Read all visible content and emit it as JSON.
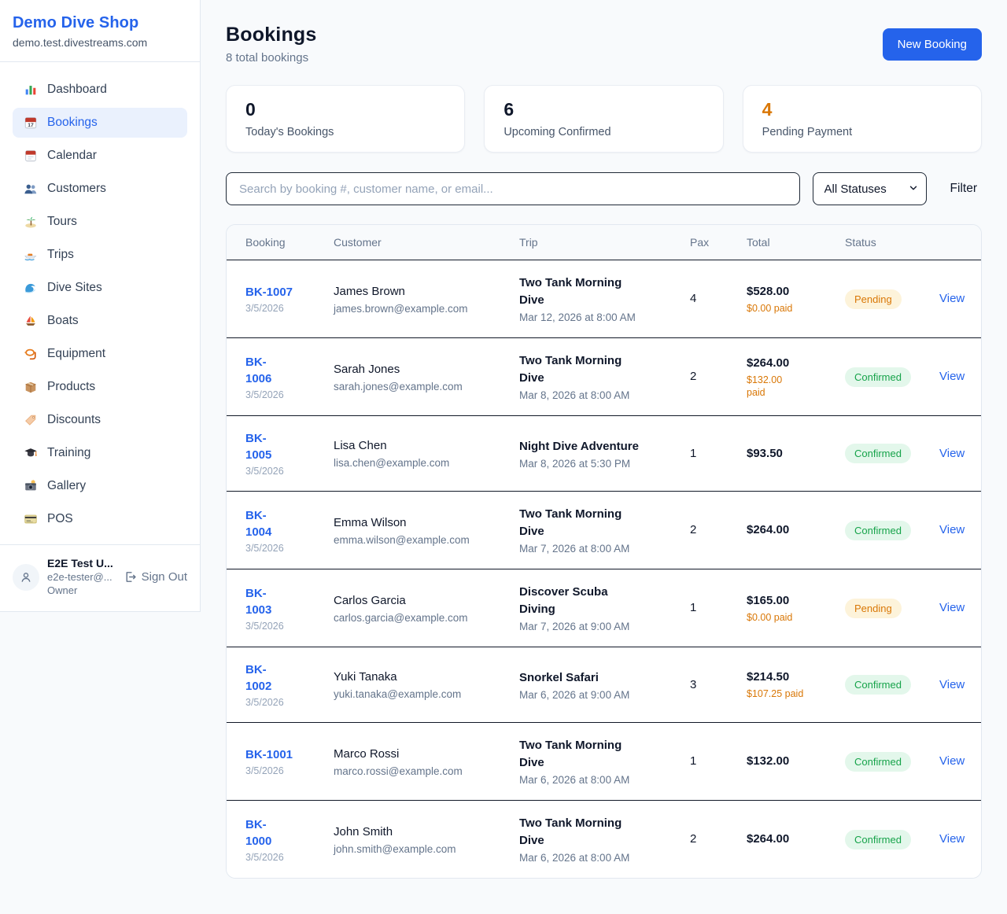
{
  "sidebar": {
    "brand": "Demo Dive Shop",
    "domain": "demo.test.divestreams.com",
    "items": [
      {
        "label": "Dashboard",
        "icon": "bar-chart-icon",
        "active": false
      },
      {
        "label": "Bookings",
        "icon": "calendar-icon",
        "active": true
      },
      {
        "label": "Calendar",
        "icon": "tear-calendar-icon",
        "active": false
      },
      {
        "label": "Customers",
        "icon": "people-icon",
        "active": false
      },
      {
        "label": "Tours",
        "icon": "island-icon",
        "active": false
      },
      {
        "label": "Trips",
        "icon": "speedboat-icon",
        "active": false
      },
      {
        "label": "Dive Sites",
        "icon": "wave-icon",
        "active": false
      },
      {
        "label": "Boats",
        "icon": "sailboat-icon",
        "active": false
      },
      {
        "label": "Equipment",
        "icon": "dive-mask-icon",
        "active": false
      },
      {
        "label": "Products",
        "icon": "package-icon",
        "active": false
      },
      {
        "label": "Discounts",
        "icon": "tag-icon",
        "active": false
      },
      {
        "label": "Training",
        "icon": "graduation-cap-icon",
        "active": false
      },
      {
        "label": "Gallery",
        "icon": "camera-icon",
        "active": false
      },
      {
        "label": "POS",
        "icon": "credit-card-icon",
        "active": false
      }
    ],
    "user": {
      "name": "E2E Test U...",
      "email": "e2e-tester@...",
      "role": "Owner",
      "sign_out_label": "Sign Out"
    }
  },
  "header": {
    "title": "Bookings",
    "subtitle": "8 total bookings",
    "new_booking_label": "New Booking"
  },
  "stats": [
    {
      "value": "0",
      "label": "Today's Bookings",
      "color": "#0f172a"
    },
    {
      "value": "6",
      "label": "Upcoming Confirmed",
      "color": "#0f172a"
    },
    {
      "value": "4",
      "label": "Pending Payment",
      "color": "#d97706"
    }
  ],
  "controls": {
    "search_placeholder": "Search by booking #, customer name, or email...",
    "status_filter_value": "All Statuses",
    "filter_label": "Filter"
  },
  "table": {
    "columns": [
      "Booking",
      "Customer",
      "Trip",
      "Pax",
      "Total",
      "Status"
    ],
    "view_label": "View",
    "rows": [
      {
        "booking_lines": [
          "BK-1007"
        ],
        "date": "3/5/2026",
        "customer": "James Brown",
        "email": "james.brown@example.com",
        "trip_lines": [
          "Two Tank Morning",
          "Dive"
        ],
        "trip_date": "Mar 12, 2026 at 8:00 AM",
        "pax": "4",
        "total": "$528.00",
        "paid_lines": [
          "$0.00 paid"
        ],
        "status": "Pending"
      },
      {
        "booking_lines": [
          "BK-",
          "1006"
        ],
        "date": "3/5/2026",
        "customer": "Sarah Jones",
        "email": "sarah.jones@example.com",
        "trip_lines": [
          "Two Tank Morning",
          "Dive"
        ],
        "trip_date": "Mar 8, 2026 at 8:00 AM",
        "pax": "2",
        "total": "$264.00",
        "paid_lines": [
          "$132.00",
          "paid"
        ],
        "status": "Confirmed"
      },
      {
        "booking_lines": [
          "BK-",
          "1005"
        ],
        "date": "3/5/2026",
        "customer": "Lisa Chen",
        "email": "lisa.chen@example.com",
        "trip_lines": [
          "Night Dive Adventure"
        ],
        "trip_date": "Mar 8, 2026 at 5:30 PM",
        "pax": "1",
        "total": "$93.50",
        "paid_lines": [],
        "status": "Confirmed"
      },
      {
        "booking_lines": [
          "BK-",
          "1004"
        ],
        "date": "3/5/2026",
        "customer": "Emma Wilson",
        "email": "emma.wilson@example.com",
        "trip_lines": [
          "Two Tank Morning",
          "Dive"
        ],
        "trip_date": "Mar 7, 2026 at 8:00 AM",
        "pax": "2",
        "total": "$264.00",
        "paid_lines": [],
        "status": "Confirmed"
      },
      {
        "booking_lines": [
          "BK-",
          "1003"
        ],
        "date": "3/5/2026",
        "customer": "Carlos Garcia",
        "email": "carlos.garcia@example.com",
        "trip_lines": [
          "Discover Scuba",
          "Diving"
        ],
        "trip_date": "Mar 7, 2026 at 9:00 AM",
        "pax": "1",
        "total": "$165.00",
        "paid_lines": [
          "$0.00 paid"
        ],
        "status": "Pending"
      },
      {
        "booking_lines": [
          "BK-",
          "1002"
        ],
        "date": "3/5/2026",
        "customer": "Yuki Tanaka",
        "email": "yuki.tanaka@example.com",
        "trip_lines": [
          "Snorkel Safari"
        ],
        "trip_date": "Mar 6, 2026 at 9:00 AM",
        "pax": "3",
        "total": "$214.50",
        "paid_lines": [
          "$107.25 paid"
        ],
        "status": "Confirmed"
      },
      {
        "booking_lines": [
          "BK-1001"
        ],
        "date": "3/5/2026",
        "customer": "Marco Rossi",
        "email": "marco.rossi@example.com",
        "trip_lines": [
          "Two Tank Morning",
          "Dive"
        ],
        "trip_date": "Mar 6, 2026 at 8:00 AM",
        "pax": "1",
        "total": "$132.00",
        "paid_lines": [],
        "status": "Confirmed"
      },
      {
        "booking_lines": [
          "BK-",
          "1000"
        ],
        "date": "3/5/2026",
        "customer": "John Smith",
        "email": "john.smith@example.com",
        "trip_lines": [
          "Two Tank Morning",
          "Dive"
        ],
        "trip_date": "Mar 6, 2026 at 8:00 AM",
        "pax": "2",
        "total": "$264.00",
        "paid_lines": [],
        "status": "Confirmed"
      }
    ]
  },
  "colors": {
    "brand_blue": "#2563eb",
    "pending_text": "#d97706",
    "pending_bg": "#fdf3da",
    "confirmed_text": "#16a34a",
    "confirmed_bg": "#e3f7eb",
    "page_bg": "#f8fafc"
  }
}
